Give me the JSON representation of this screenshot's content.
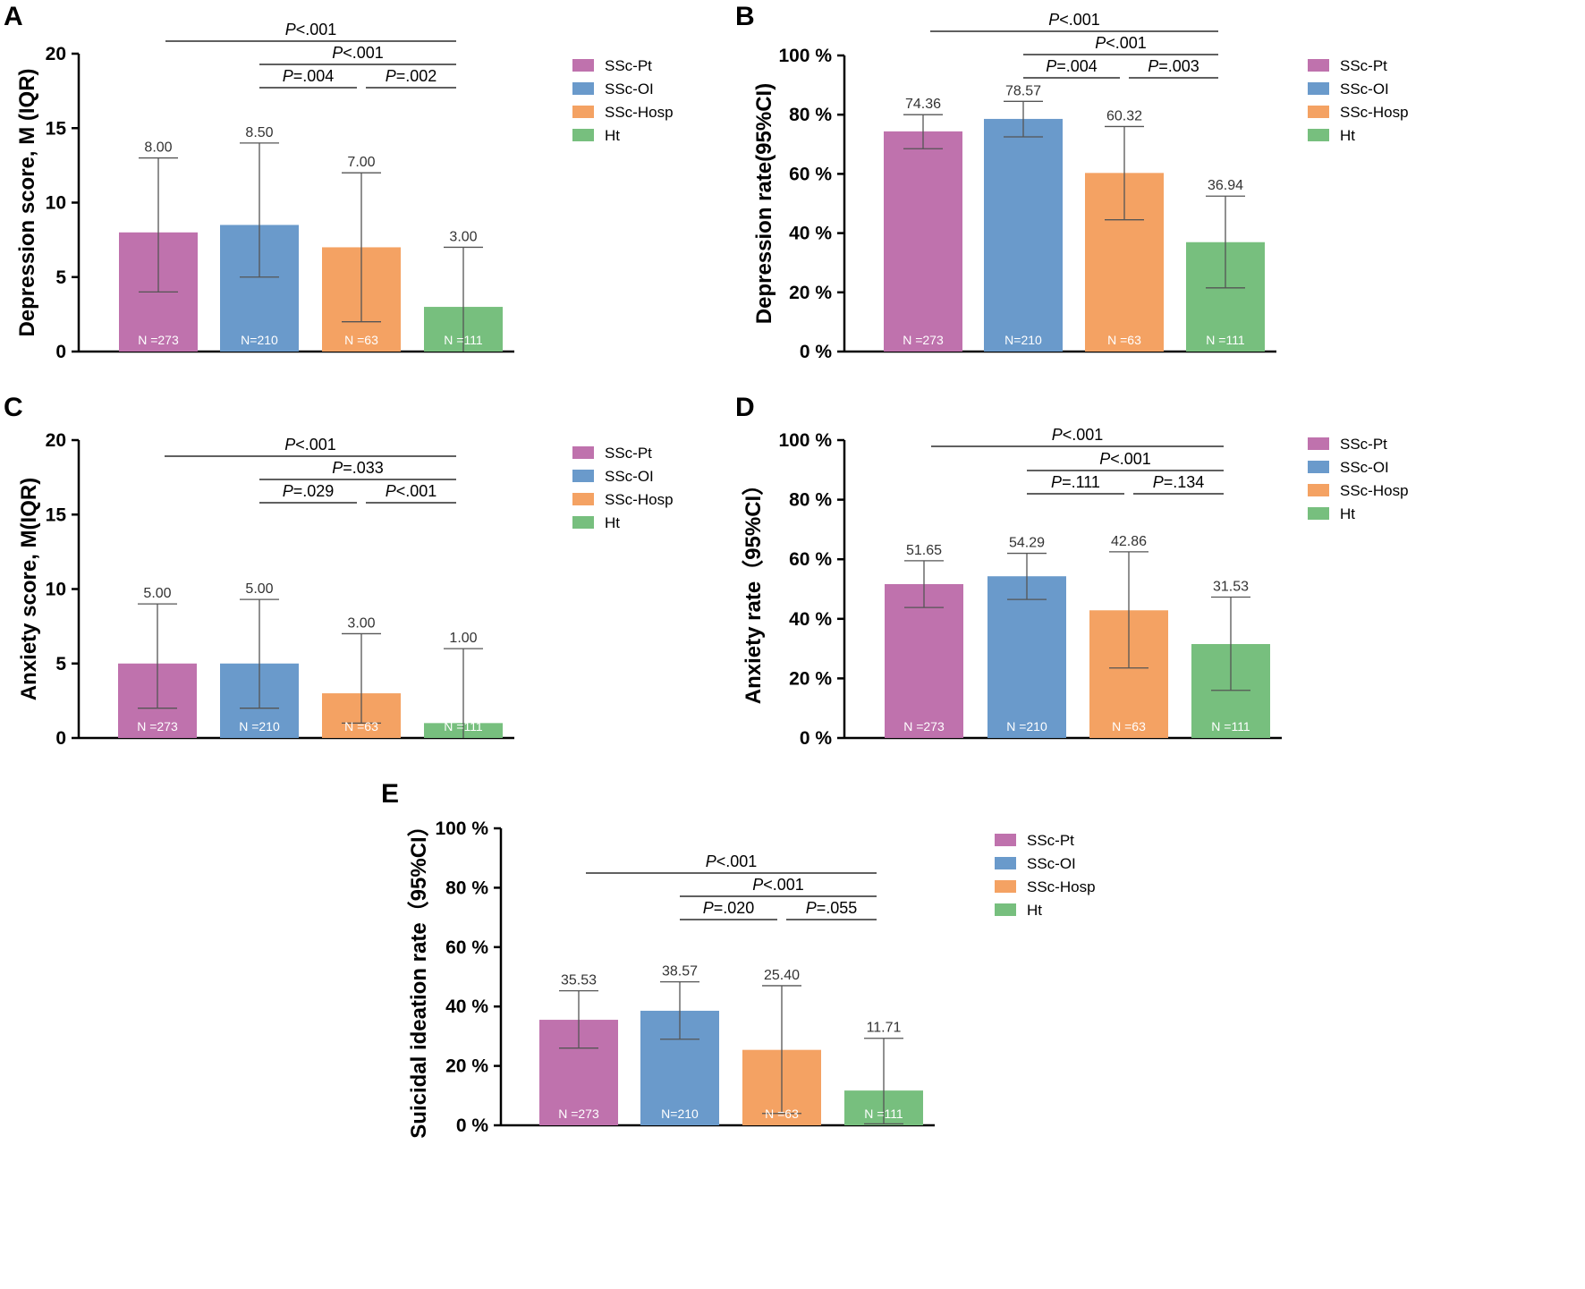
{
  "colors": {
    "SSc-Pt": "#bf72ad",
    "SSc-OI": "#6a9acb",
    "SSc-Hosp": "#f4a263",
    "Ht": "#77bf7e",
    "axis": "#000000",
    "errorbar": "#555555"
  },
  "legend_labels": [
    "SSc-Pt",
    "SSc-OI",
    "SSc-Hosp",
    "Ht"
  ],
  "chart_data": [
    {
      "panel": "A",
      "type": "bar",
      "title": "",
      "ylabel": "Depression score, M (IQR)",
      "xlabel": "",
      "ylim": [
        0,
        20
      ],
      "yticks": [
        "0",
        "5",
        "10",
        "15",
        "20"
      ],
      "categories": [
        "SSc-Pt",
        "SSc-OI",
        "SSc-Hosp",
        "Ht"
      ],
      "values": [
        8.0,
        8.5,
        7.0,
        3.0
      ],
      "value_labels": [
        "8.00",
        "8.50",
        "7.00",
        "3.00"
      ],
      "err_low": [
        4,
        5,
        2,
        0
      ],
      "err_high": [
        13,
        14,
        12,
        7
      ],
      "n_labels": [
        "N =273",
        "N=210",
        "N =63",
        "N =111"
      ],
      "comparisons": [
        {
          "from": 0,
          "to": 3,
          "label": "P<.001"
        },
        {
          "from": 1,
          "to": 3,
          "label": "P<.001"
        },
        {
          "from": 1,
          "to": 2,
          "label": "P=.004"
        },
        {
          "from": 2,
          "to": 3,
          "label": "P=.002"
        }
      ],
      "legend": "right"
    },
    {
      "panel": "B",
      "type": "bar",
      "title": "",
      "ylabel": "Depression rate(95%CI)",
      "xlabel": "",
      "ylim": [
        0,
        100
      ],
      "yticks": [
        "0 %",
        "20 %",
        "40 %",
        "60 %",
        "80 %",
        "100 %"
      ],
      "categories": [
        "SSc-Pt",
        "SSc-OI",
        "SSc-Hosp",
        "Ht"
      ],
      "values": [
        74.36,
        78.57,
        60.32,
        36.94
      ],
      "value_labels": [
        "74.36",
        "78.57",
        "60.32",
        "36.94"
      ],
      "err_low": [
        68.5,
        72.5,
        44.5,
        21.5
      ],
      "err_high": [
        80.0,
        84.5,
        76.0,
        52.5
      ],
      "n_labels": [
        "N =273",
        "N=210",
        "N =63",
        "N =111"
      ],
      "comparisons": [
        {
          "from": 0,
          "to": 3,
          "label": "P<.001"
        },
        {
          "from": 1,
          "to": 3,
          "label": "P<.001"
        },
        {
          "from": 1,
          "to": 2,
          "label": "P=.004"
        },
        {
          "from": 2,
          "to": 3,
          "label": "P=.003"
        }
      ],
      "legend": "right"
    },
    {
      "panel": "C",
      "type": "bar",
      "title": "",
      "ylabel": "Anxiety score, M(IQR)",
      "xlabel": "",
      "ylim": [
        0,
        20
      ],
      "yticks": [
        "0",
        "5",
        "10",
        "15",
        "20"
      ],
      "categories": [
        "SSc-Pt",
        "SSc-OI",
        "SSc-Hosp",
        "Ht"
      ],
      "values": [
        5.0,
        5.0,
        3.0,
        1.0
      ],
      "value_labels": [
        "5.00",
        "5.00",
        "3.00",
        "1.00"
      ],
      "err_low": [
        2,
        2,
        1,
        0
      ],
      "err_high": [
        9,
        9.3,
        7,
        6
      ],
      "n_labels": [
        "N =273",
        "N =210",
        "N =63",
        "N =111"
      ],
      "comparisons": [
        {
          "from": 0,
          "to": 3,
          "label": "P<.001"
        },
        {
          "from": 1,
          "to": 3,
          "label": "P=.033"
        },
        {
          "from": 1,
          "to": 2,
          "label": "P=.029"
        },
        {
          "from": 2,
          "to": 3,
          "label": "P<.001"
        }
      ],
      "legend": "right"
    },
    {
      "panel": "D",
      "type": "bar",
      "title": "",
      "ylabel": "Anxiety rate（95%CI）",
      "xlabel": "",
      "ylim": [
        0,
        100
      ],
      "yticks": [
        "0 %",
        "20 %",
        "40 %",
        "60 %",
        "80 %",
        "100 %"
      ],
      "categories": [
        "SSc-Pt",
        "SSc-OI",
        "SSc-Hosp",
        "Ht"
      ],
      "values": [
        51.65,
        54.29,
        42.86,
        31.53
      ],
      "value_labels": [
        "51.65",
        "54.29",
        "42.86",
        "31.53"
      ],
      "err_low": [
        43.8,
        46.5,
        23.5,
        16.0
      ],
      "err_high": [
        59.5,
        62.0,
        62.5,
        47.3
      ],
      "n_labels": [
        "N =273",
        "N =210",
        "N =63",
        "N =111"
      ],
      "comparisons": [
        {
          "from": 0,
          "to": 3,
          "label": "P<.001"
        },
        {
          "from": 1,
          "to": 3,
          "label": "P<.001"
        },
        {
          "from": 1,
          "to": 2,
          "label": "P=.111"
        },
        {
          "from": 2,
          "to": 3,
          "label": "P=.134"
        }
      ],
      "legend": "right"
    },
    {
      "panel": "E",
      "type": "bar",
      "title": "",
      "ylabel": "Suicidal ideation rate（95%CI）",
      "xlabel": "",
      "ylim": [
        0,
        100
      ],
      "yticks": [
        "0 %",
        "20 %",
        "40 %",
        "60 %",
        "80 %",
        "100 %"
      ],
      "categories": [
        "SSc-Pt",
        "SSc-OI",
        "SSc-Hosp",
        "Ht"
      ],
      "values": [
        35.53,
        38.57,
        25.4,
        11.71
      ],
      "value_labels": [
        "35.53",
        "38.57",
        "25.40",
        "11.71"
      ],
      "err_low": [
        26.0,
        29.0,
        4.0,
        0.5
      ],
      "err_high": [
        45.3,
        48.3,
        47.0,
        29.3
      ],
      "n_labels": [
        "N =273",
        "N=210",
        "N =63",
        "N =111"
      ],
      "comparisons": [
        {
          "from": 0,
          "to": 3,
          "label": "P<.001"
        },
        {
          "from": 1,
          "to": 3,
          "label": "P<.001"
        },
        {
          "from": 1,
          "to": 2,
          "label": "P=.020"
        },
        {
          "from": 2,
          "to": 3,
          "label": "P=.055"
        }
      ],
      "legend": "right"
    }
  ]
}
